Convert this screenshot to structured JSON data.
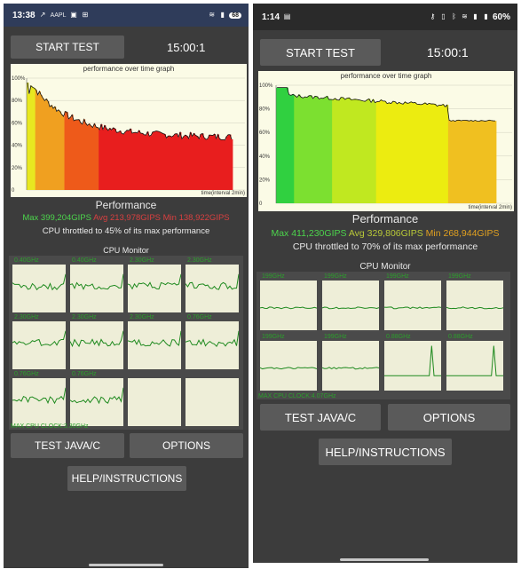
{
  "left": {
    "status": {
      "time": "13:38",
      "carrier": "AAPL",
      "battery": "68"
    },
    "start_test_label": "START TEST",
    "timer": "15:00:1",
    "graph_title": "performance over time graph",
    "y_ticks": [
      "100%",
      "80%",
      "60%",
      "40%",
      "20%",
      "0"
    ],
    "time_label": "time(interval 2min)",
    "performance_label": "Performance",
    "stats": {
      "max": "Max 399,204GIPS",
      "avg": "Avg 213,978GIPS",
      "min": "Min 138,922GIPS"
    },
    "throttle_text": "CPU throttled to 45% of its max performance",
    "cpu_monitor_title": "CPU Monitor",
    "cpu_cells": [
      "0.40GHz",
      "0.40GHz",
      "2.30GHz",
      "2.30GHz",
      "2.30GHz",
      "2.30GHz",
      "2.30GHz",
      "0.76GHz",
      "0.76GHz",
      "0.76GHz",
      "",
      ""
    ],
    "max_cpu_clock": "MAX CPU CLOCK:3.30GHz",
    "test_java_label": "TEST JAVA/C",
    "options_label": "OPTIONS",
    "help_label": "HELP/INSTRUCTIONS"
  },
  "right": {
    "status": {
      "time": "1:14",
      "battery": "60%"
    },
    "start_test_label": "START TEST",
    "timer": "15:00:1",
    "graph_title": "performance over time graph",
    "y_ticks": [
      "100%",
      "80%",
      "60%",
      "40%",
      "20%",
      "0"
    ],
    "time_label": "time(interval 2min)",
    "performance_label": "Performance",
    "stats": {
      "max": "Max 411,230GIPS",
      "avg": "Avg 329,806GIPS",
      "min": "Min 268,944GIPS"
    },
    "throttle_text": "CPU throttled to 70% of its max performance",
    "cpu_monitor_title": "CPU Monitor",
    "cpu_cells": [
      "199GHz",
      "199GHz",
      "199GHz",
      "199GHz",
      "199GHz",
      "199GHz",
      "0.88GHz",
      "0.88GHz"
    ],
    "max_cpu_clock": "MAX CPU CLOCK:4.07GHz",
    "test_java_label": "TEST JAVA/C",
    "options_label": "OPTIONS",
    "help_label": "HELP/INSTRUCTIONS"
  }
}
